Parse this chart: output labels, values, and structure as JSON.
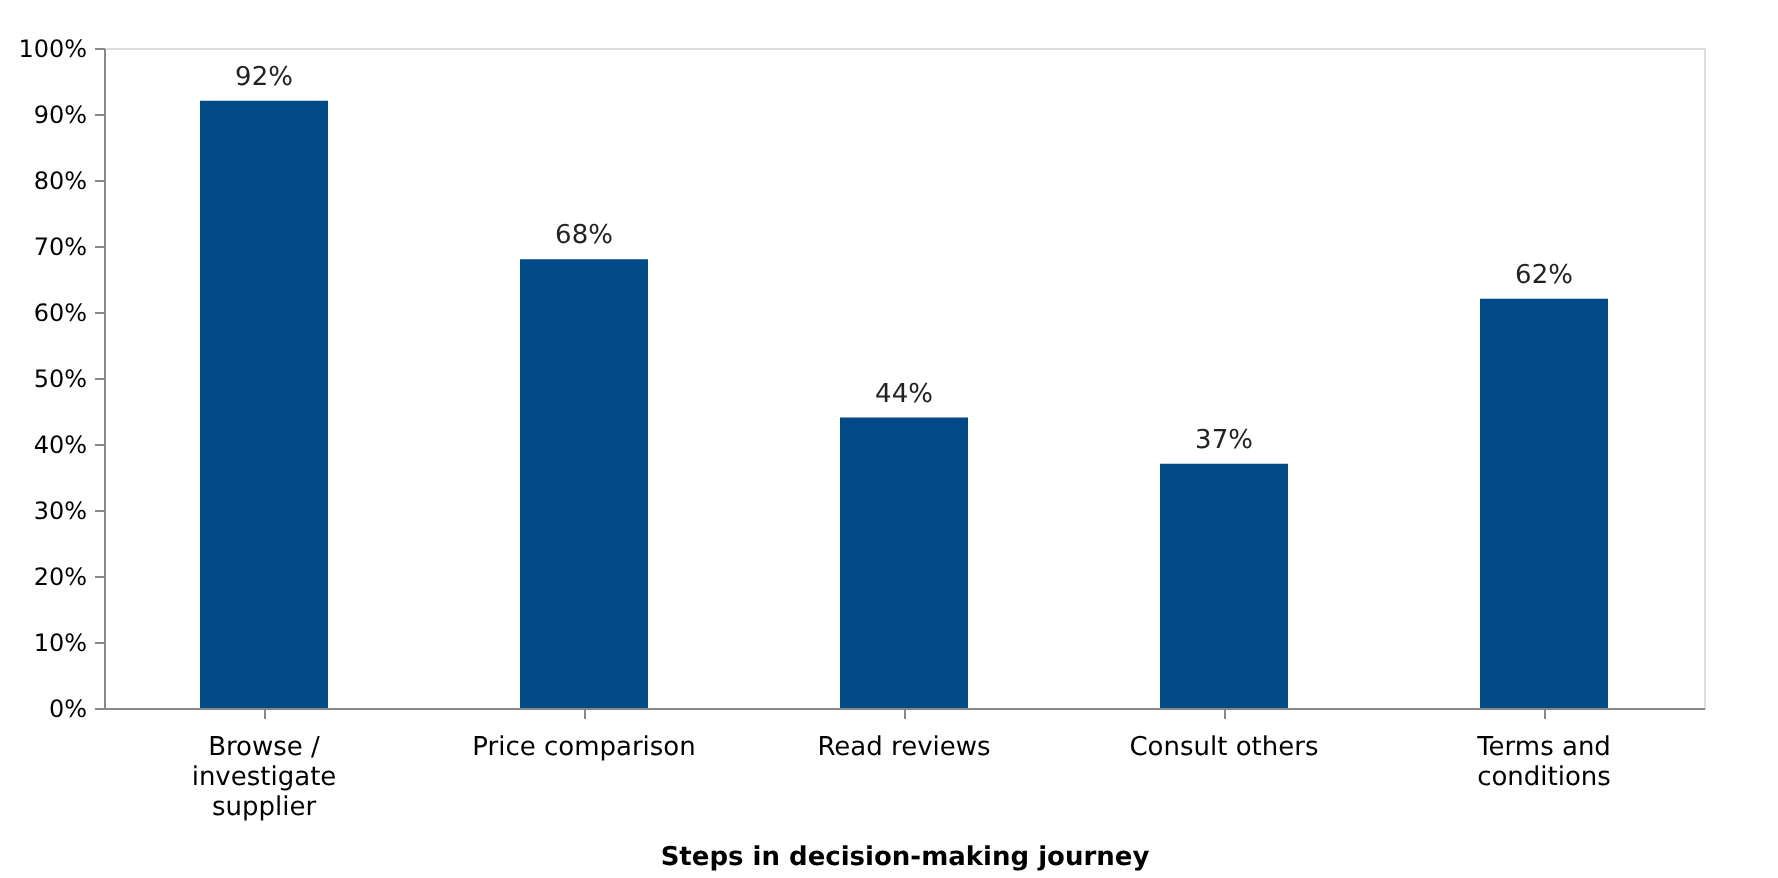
{
  "chart_data": {
    "type": "bar",
    "xlabel": "Steps in decision-making journey",
    "categories": [
      "Browse / investigate supplier",
      "Price comparison",
      "Read reviews",
      "Consult others",
      "Terms and conditions"
    ],
    "values": [
      92,
      68,
      44,
      37,
      62
    ],
    "value_labels": [
      "92%",
      "68%",
      "44%",
      "37%",
      "62%"
    ],
    "color": "#004a87",
    "ylim": [
      0,
      100
    ],
    "yticks": [
      {
        "value": 0,
        "label": "0%"
      },
      {
        "value": 10,
        "label": "10%"
      },
      {
        "value": 20,
        "label": "20%"
      },
      {
        "value": 30,
        "label": "30%"
      },
      {
        "value": 40,
        "label": "40%"
      },
      {
        "value": 50,
        "label": "50%"
      },
      {
        "value": 60,
        "label": "60%"
      },
      {
        "value": 70,
        "label": "70%"
      },
      {
        "value": 80,
        "label": "80%"
      },
      {
        "value": 90,
        "label": "90%"
      },
      {
        "value": 100,
        "label": "100%"
      }
    ],
    "grid": false
  }
}
